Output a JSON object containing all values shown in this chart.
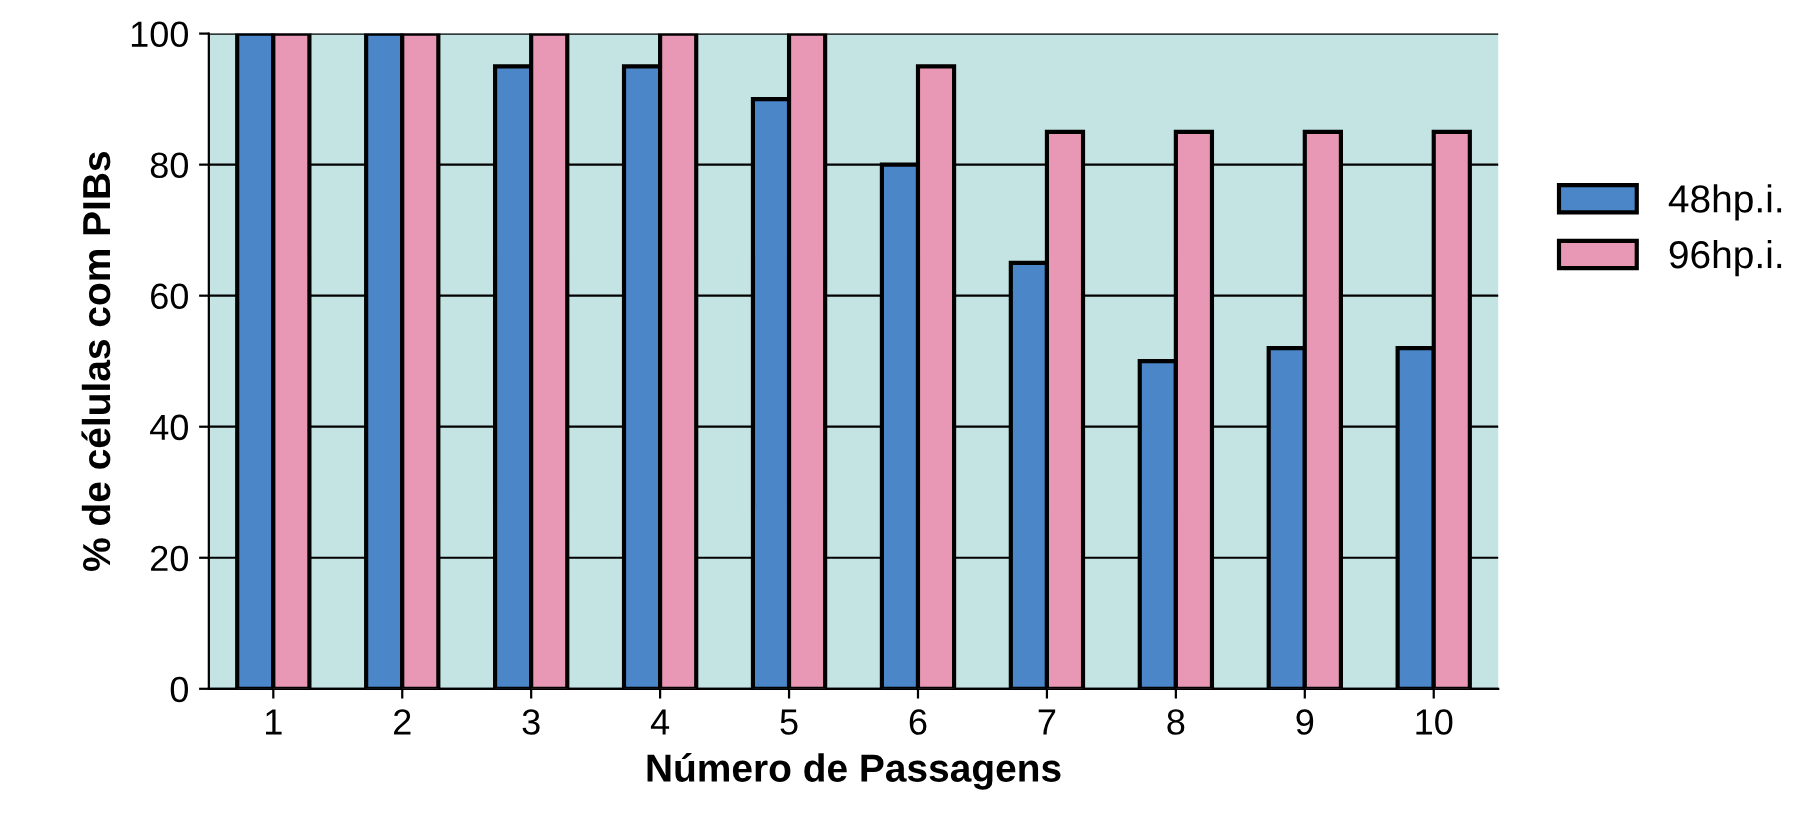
{
  "chart_data": {
    "type": "bar",
    "xlabel": "Número de Passagens",
    "ylabel": "% de células com PIBs",
    "categories": [
      "1",
      "2",
      "3",
      "4",
      "5",
      "6",
      "7",
      "8",
      "9",
      "10"
    ],
    "series": [
      {
        "name": "48hp.i.",
        "color": "#4a86c8",
        "values": [
          100,
          100,
          95,
          95,
          90,
          80,
          65,
          50,
          52,
          52
        ]
      },
      {
        "name": "96hp.i.",
        "color": "#e898b4",
        "values": [
          100,
          100,
          100,
          100,
          100,
          95,
          85,
          85,
          85,
          85
        ]
      }
    ],
    "ylim": [
      0,
      100
    ],
    "yticks": [
      0,
      20,
      40,
      60,
      80,
      100
    ],
    "grid": "y",
    "legend": "right"
  }
}
